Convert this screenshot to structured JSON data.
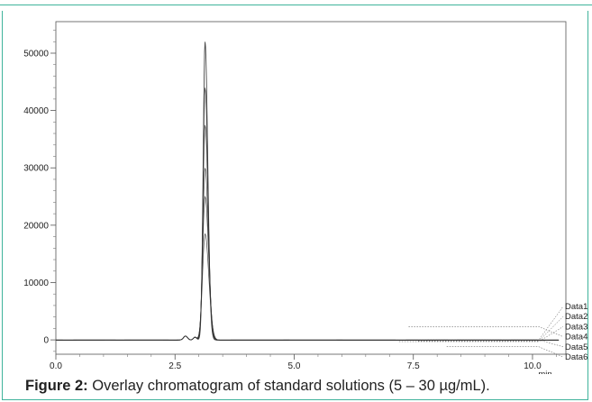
{
  "caption": {
    "label": "Figure 2:",
    "text": " Overlay chromatogram of standard solutions (5 – 30 µg/mL)."
  },
  "colors": {
    "frame": "#3fb39b",
    "trace": "#333333"
  },
  "chart_data": {
    "type": "line",
    "title": "",
    "xlabel": "min",
    "ylabel": "",
    "xlim": [
      0.0,
      10.7
    ],
    "ylim": [
      -2500,
      55500
    ],
    "xticks": [
      0.0,
      2.5,
      5.0,
      7.5,
      10.0
    ],
    "xtick_labels": [
      "0.0",
      "2.5",
      "5.0",
      "7.5",
      "10.0"
    ],
    "yticks": [
      0,
      10000,
      20000,
      30000,
      40000,
      50000
    ],
    "ytick_labels": [
      "0",
      "10000",
      "20000",
      "30000",
      "40000",
      "50000"
    ],
    "grid": false,
    "legend": "right, leader lines",
    "series": [
      {
        "name": "Data1",
        "peak": 52000
      },
      {
        "name": "Data2",
        "peak": 44000
      },
      {
        "name": "Data3",
        "peak": 37500
      },
      {
        "name": "Data4",
        "peak": 30000
      },
      {
        "name": "Data5",
        "peak": 25000
      },
      {
        "name": "Data6",
        "peak": 18500
      }
    ],
    "peak_time": 3.13
  }
}
